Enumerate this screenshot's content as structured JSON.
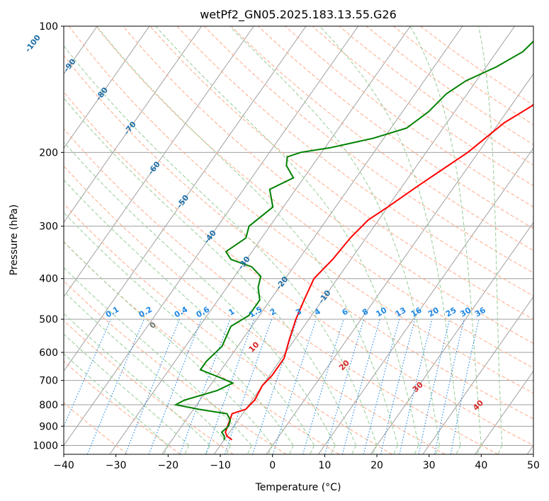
{
  "chart_data": {
    "type": "line",
    "title": "wetPf2_GN05.2025.183.13.55.G26",
    "xlabel": "Temperature (°C)",
    "ylabel": "Pressure (hPa)",
    "xlim": [
      -40,
      50
    ],
    "ylim": [
      1050,
      100
    ],
    "y_scale": "log",
    "x_ticks": [
      -40,
      -30,
      -20,
      -10,
      0,
      10,
      20,
      30,
      40,
      50
    ],
    "x_tick_labels": [
      "−40",
      "−30",
      "−20",
      "−10",
      "0",
      "10",
      "20",
      "30",
      "40",
      "50"
    ],
    "y_ticks": [
      1000,
      900,
      800,
      700,
      600,
      500,
      400,
      300,
      200,
      100
    ],
    "grid": true,
    "colors": {
      "temperature": "#ff0000",
      "dewpoint": "#008000",
      "isotherm": "#a0a0a0",
      "dry_adiabat": "#ffb090",
      "moist_adiabat": "#9fd09f",
      "mixing_ratio": "#1e88e5",
      "isotherm_label": "#1f6fa8",
      "moist_label": "#d62728"
    },
    "series": [
      {
        "name": "Temperature",
        "points": [
          {
            "p": 970,
            "t": -8.5
          },
          {
            "p": 950,
            "t": -10
          },
          {
            "p": 930,
            "t": -10.8
          },
          {
            "p": 840,
            "t": -12
          },
          {
            "p": 820,
            "t": -10
          },
          {
            "p": 780,
            "t": -9.5
          },
          {
            "p": 720,
            "t": -10
          },
          {
            "p": 680,
            "t": -9.5
          },
          {
            "p": 620,
            "t": -9.5
          },
          {
            "p": 560,
            "t": -11
          },
          {
            "p": 500,
            "t": -12.5
          },
          {
            "p": 450,
            "t": -13.5
          },
          {
            "p": 400,
            "t": -14.5
          },
          {
            "p": 360,
            "t": -13.5
          },
          {
            "p": 320,
            "t": -13
          },
          {
            "p": 290,
            "t": -12
          },
          {
            "p": 270,
            "t": -10
          },
          {
            "p": 240,
            "t": -7
          },
          {
            "p": 200,
            "t": -2
          },
          {
            "p": 170,
            "t": 1
          },
          {
            "p": 155,
            "t": 4
          },
          {
            "p": 140,
            "t": 6
          },
          {
            "p": 120,
            "t": 9
          },
          {
            "p": 110,
            "t": 10.5
          },
          {
            "p": 100,
            "t": 12
          }
        ]
      },
      {
        "name": "Dewpoint",
        "points": [
          {
            "p": 970,
            "t": -10
          },
          {
            "p": 950,
            "t": -10.5
          },
          {
            "p": 930,
            "t": -11.5
          },
          {
            "p": 900,
            "t": -11
          },
          {
            "p": 870,
            "t": -11.5
          },
          {
            "p": 840,
            "t": -13
          },
          {
            "p": 820,
            "t": -19
          },
          {
            "p": 800,
            "t": -24
          },
          {
            "p": 780,
            "t": -23
          },
          {
            "p": 740,
            "t": -18
          },
          {
            "p": 710,
            "t": -16
          },
          {
            "p": 690,
            "t": -19
          },
          {
            "p": 660,
            "t": -24
          },
          {
            "p": 630,
            "t": -24
          },
          {
            "p": 580,
            "t": -23
          },
          {
            "p": 520,
            "t": -24
          },
          {
            "p": 490,
            "t": -22
          },
          {
            "p": 450,
            "t": -22
          },
          {
            "p": 420,
            "t": -24
          },
          {
            "p": 395,
            "t": -25
          },
          {
            "p": 375,
            "t": -28
          },
          {
            "p": 360,
            "t": -33
          },
          {
            "p": 345,
            "t": -35
          },
          {
            "p": 320,
            "t": -33
          },
          {
            "p": 300,
            "t": -34
          },
          {
            "p": 270,
            "t": -32
          },
          {
            "p": 245,
            "t": -35
          },
          {
            "p": 230,
            "t": -32
          },
          {
            "p": 215,
            "t": -35
          },
          {
            "p": 205,
            "t": -36
          },
          {
            "p": 200,
            "t": -34
          },
          {
            "p": 195,
            "t": -29
          },
          {
            "p": 185,
            "t": -22
          },
          {
            "p": 175,
            "t": -17
          },
          {
            "p": 160,
            "t": -15
          },
          {
            "p": 145,
            "t": -14
          },
          {
            "p": 135,
            "t": -12
          },
          {
            "p": 125,
            "t": -8
          },
          {
            "p": 115,
            "t": -5
          },
          {
            "p": 105,
            "t": -4
          },
          {
            "p": 100,
            "t": -3
          }
        ]
      }
    ],
    "isotherm_labels": [
      "-100",
      "-90",
      "-80",
      "-70",
      "-60",
      "-50",
      "-40",
      "-30",
      "-20",
      "-10"
    ],
    "isotherm_label_values": [
      -100,
      -90,
      -80,
      -70,
      -60,
      -50,
      -40,
      -30,
      -20,
      -10
    ],
    "mixing_ratio_labels": [
      "0.1",
      "0.2",
      "0.4",
      "0.6",
      "1",
      "1.5",
      "2",
      "3",
      "4",
      "6",
      "8",
      "10",
      "13",
      "16",
      "20",
      "25",
      "30",
      "36"
    ],
    "mixing_ratio_values": [
      0.1,
      0.2,
      0.4,
      0.6,
      1,
      1.5,
      2,
      3,
      4,
      6,
      8,
      10,
      13,
      16,
      20,
      25,
      30,
      36
    ],
    "moist_adiabat_labels": [
      "0",
      "10",
      "20",
      "30",
      "40"
    ],
    "moist_adiabat_values": [
      0,
      10,
      20,
      30,
      40
    ]
  }
}
